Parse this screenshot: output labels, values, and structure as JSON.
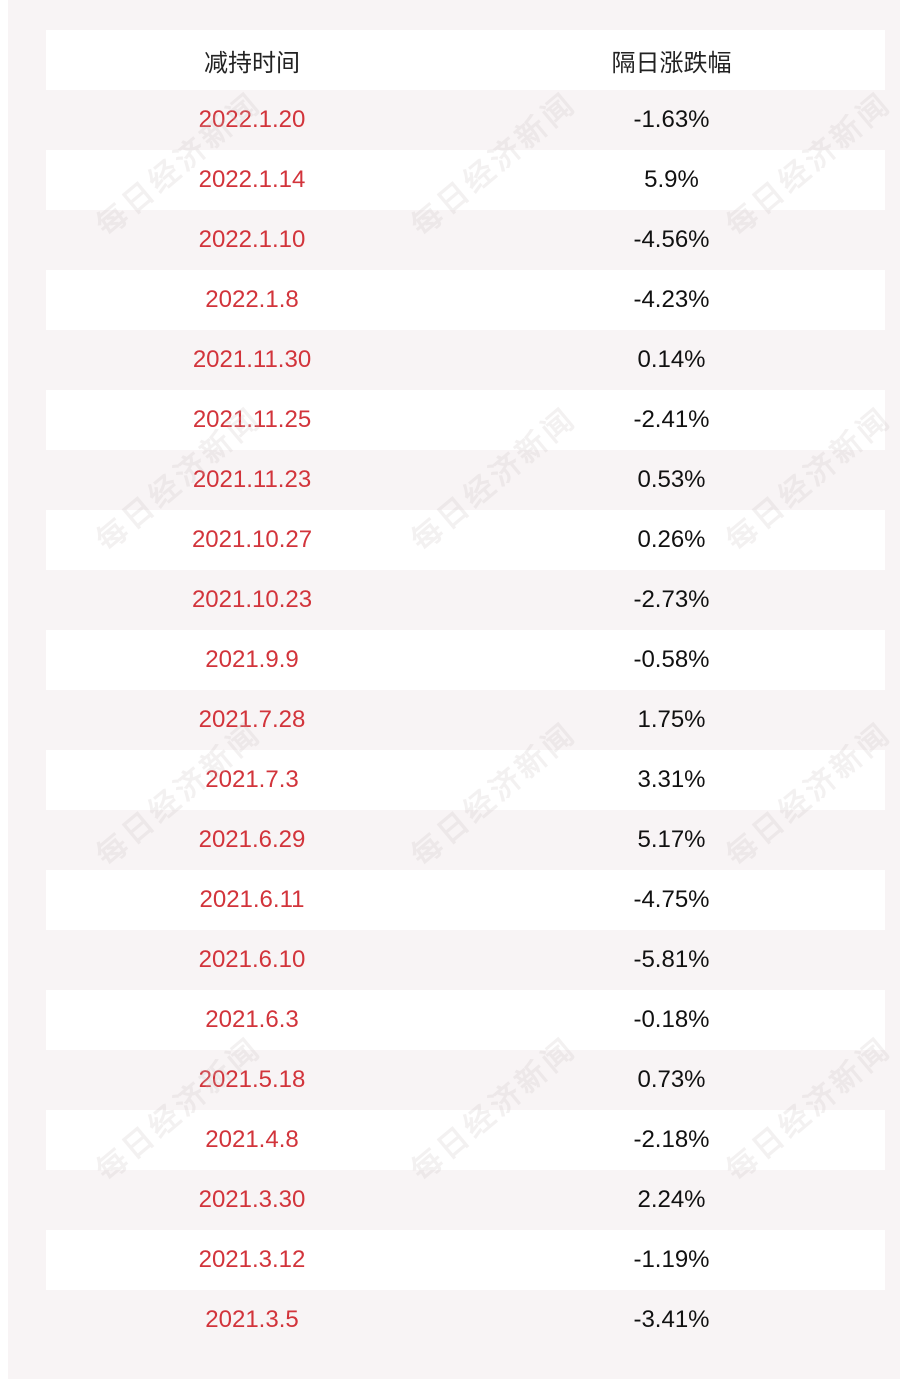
{
  "table": {
    "headers": {
      "date": "减持时间",
      "change": "隔日涨跌幅"
    },
    "rows": [
      {
        "date": "2022.1.20",
        "change": "-1.63%"
      },
      {
        "date": "2022.1.14",
        "change": "5.9%"
      },
      {
        "date": "2022.1.10",
        "change": "-4.56%"
      },
      {
        "date": "2022.1.8",
        "change": "-4.23%"
      },
      {
        "date": "2021.11.30",
        "change": "0.14%"
      },
      {
        "date": "2021.11.25",
        "change": "-2.41%"
      },
      {
        "date": "2021.11.23",
        "change": "0.53%"
      },
      {
        "date": "2021.10.27",
        "change": "0.26%"
      },
      {
        "date": "2021.10.23",
        "change": "-2.73%"
      },
      {
        "date": "2021.9.9",
        "change": "-0.58%"
      },
      {
        "date": "2021.7.28",
        "change": "1.75%"
      },
      {
        "date": "2021.7.3",
        "change": "3.31%"
      },
      {
        "date": "2021.6.29",
        "change": "5.17%"
      },
      {
        "date": "2021.6.11",
        "change": "-4.75%"
      },
      {
        "date": "2021.6.10",
        "change": "-5.81%"
      },
      {
        "date": "2021.6.3",
        "change": "-0.18%"
      },
      {
        "date": "2021.5.18",
        "change": "0.73%"
      },
      {
        "date": "2021.4.8",
        "change": "-2.18%"
      },
      {
        "date": "2021.3.30",
        "change": "2.24%"
      },
      {
        "date": "2021.3.12",
        "change": "-1.19%"
      },
      {
        "date": "2021.3.5",
        "change": "-3.41%"
      }
    ]
  },
  "watermark": {
    "text": "每日经济新闻"
  },
  "colors": {
    "date_text": "#d2343b",
    "change_text": "#111111",
    "row_alt": "#f8f4f5"
  }
}
